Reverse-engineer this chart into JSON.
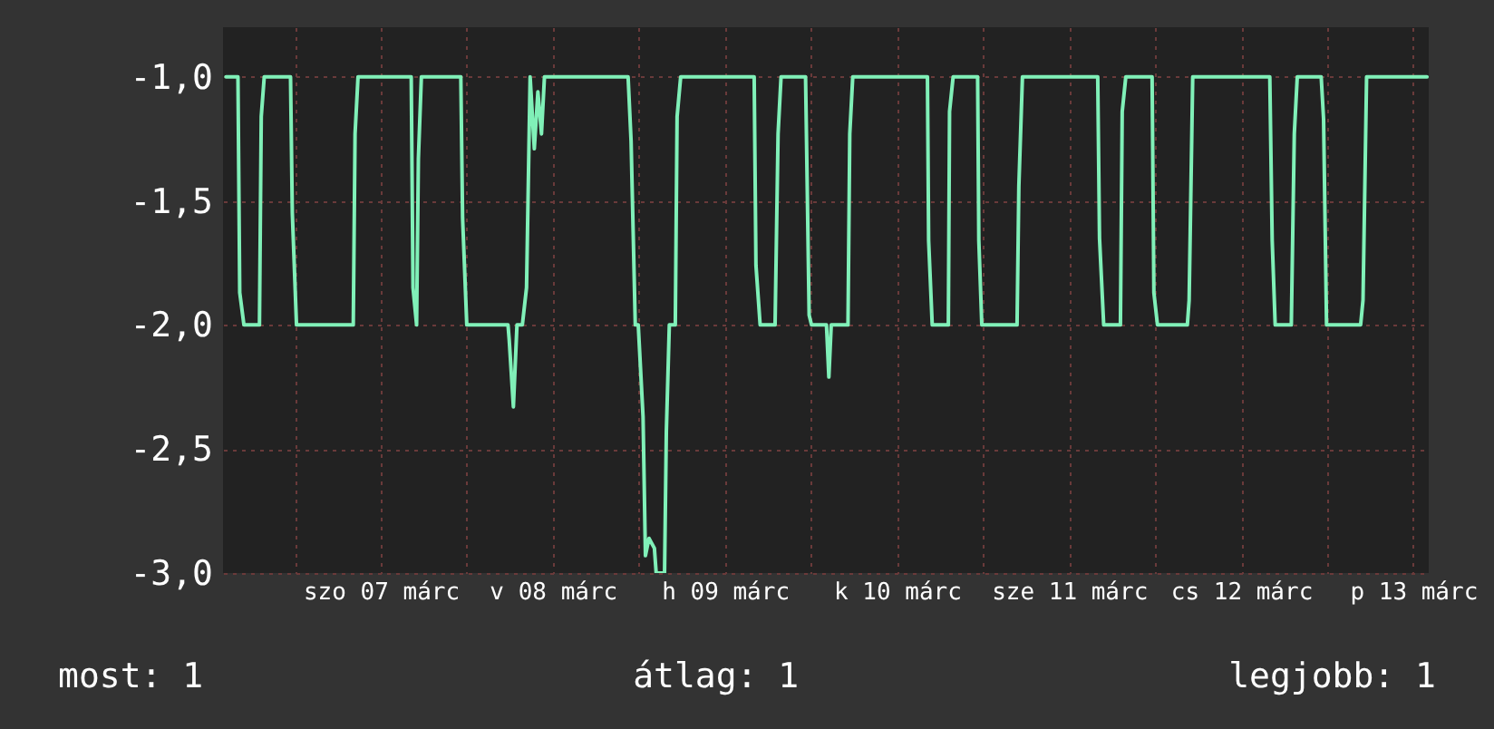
{
  "chart_data": {
    "type": "line",
    "x": [
      "--03-06T14:25",
      "--03-06T16:05",
      "--03-06T16:20",
      "--03-06T16:55",
      "--03-06T19:05",
      "--03-06T19:20",
      "--03-06T19:45",
      "--03-06T23:25",
      "--03-06T23:40",
      "--03-07T00:15",
      "--03-07T08:10",
      "--03-07T08:25",
      "--03-07T08:50",
      "--03-07T16:15",
      "--03-07T16:30",
      "--03-07T17:00",
      "--03-07T17:15",
      "--03-07T17:40",
      "--03-07T23:10",
      "--03-07T23:25",
      "--03-08T00:00",
      "--03-08T05:45",
      "--03-08T05:55",
      "--03-08T06:30",
      "--03-08T07:00",
      "--03-08T07:45",
      "--03-08T08:20",
      "--03-08T08:50",
      "--03-08T09:25",
      "--03-08T09:55",
      "--03-08T10:25",
      "--03-08T10:50",
      "--03-08T22:30",
      "--03-08T22:55",
      "--03-08T23:30",
      "--03-08T23:55",
      "--03-09T00:35",
      "--03-09T00:55",
      "--03-09T01:25",
      "--03-09T02:10",
      "--03-09T02:25",
      "--03-09T03:35",
      "--03-09T03:50",
      "--03-09T04:15",
      "--03-09T05:05",
      "--03-09T05:20",
      "--03-09T05:50",
      "--03-09T16:05",
      "--03-09T16:20",
      "--03-09T16:55",
      "--03-09T19:00",
      "--03-09T19:25",
      "--03-09T19:50",
      "--03-09T23:15",
      "--03-09T23:45",
      "--03-10T00:05",
      "--03-10T02:10",
      "--03-10T02:30",
      "--03-10T02:50",
      "--03-10T05:10",
      "--03-10T05:25",
      "--03-10T05:50",
      "--03-10T16:15",
      "--03-10T16:25",
      "--03-10T16:55",
      "--03-10T19:10",
      "--03-10T19:20",
      "--03-10T19:50",
      "--03-10T23:15",
      "--03-10T23:25",
      "--03-10T23:50",
      "--03-11T04:45",
      "--03-11T05:00",
      "--03-11T05:30",
      "--03-11T16:00",
      "--03-11T16:15",
      "--03-11T16:50",
      "--03-11T19:10",
      "--03-11T19:25",
      "--03-11T19:55",
      "--03-11T23:35",
      "--03-11T23:50",
      "--03-12T00:20",
      "--03-12T04:30",
      "--03-12T04:45",
      "--03-12T05:15",
      "--03-12T16:00",
      "--03-12T16:20",
      "--03-12T16:45",
      "--03-12T19:00",
      "--03-12T19:25",
      "--03-12T19:50",
      "--03-12T23:10",
      "--03-12T23:30",
      "--03-12T23:55",
      "--03-13T04:40",
      "--03-13T05:00",
      "--03-13T05:30",
      "--03-13T13:55"
    ],
    "series": [
      {
        "color": "#80f0b8",
        "values": [
          -1.0,
          -1.0,
          -1.87,
          -2.0,
          -2.0,
          -1.16,
          -1.0,
          -1.0,
          -1.55,
          -2.0,
          -2.0,
          -1.23,
          -1.0,
          -1.0,
          -1.85,
          -2.0,
          -1.33,
          -1.0,
          -1.0,
          -1.57,
          -2.0,
          -2.0,
          -2.06,
          -2.33,
          -2.0,
          -2.0,
          -1.85,
          -1.0,
          -1.29,
          -1.06,
          -1.23,
          -1.0,
          -1.0,
          -1.26,
          -2.0,
          -2.0,
          -2.37,
          -2.93,
          -2.86,
          -2.9,
          -3.0,
          -3.0,
          -2.43,
          -2.0,
          -2.0,
          -1.16,
          -1.0,
          -1.0,
          -1.76,
          -2.0,
          -2.0,
          -1.23,
          -1.0,
          -1.0,
          -1.96,
          -2.0,
          -2.0,
          -2.21,
          -2.0,
          -2.0,
          -1.23,
          -1.0,
          -1.0,
          -1.66,
          -2.0,
          -2.0,
          -1.14,
          -1.0,
          -1.0,
          -1.66,
          -2.0,
          -2.0,
          -1.44,
          -1.0,
          -1.0,
          -1.65,
          -2.0,
          -2.0,
          -1.14,
          -1.0,
          -1.0,
          -1.87,
          -2.0,
          -2.0,
          -1.9,
          -1.0,
          -1.0,
          -1.66,
          -2.0,
          -2.0,
          -1.23,
          -1.0,
          -1.0,
          -1.17,
          -2.0,
          -2.0,
          -1.9,
          -1.0,
          -1.0
        ]
      }
    ],
    "xlim": [
      "--03-06T14:00",
      "--03-13T14:10"
    ],
    "xticks": [
      {
        "value": "--03-07T00:00",
        "label": null
      },
      {
        "value": "--03-07T12:00",
        "label": "szo 07 márc"
      },
      {
        "value": "--03-08T00:00",
        "label": null
      },
      {
        "value": "--03-08T12:00",
        "label": "v 08 márc"
      },
      {
        "value": "--03-09T00:00",
        "label": null
      },
      {
        "value": "--03-09T12:00",
        "label": "h 09 márc"
      },
      {
        "value": "--03-10T00:00",
        "label": null
      },
      {
        "value": "--03-10T12:00",
        "label": "k 10 márc"
      },
      {
        "value": "--03-11T00:00",
        "label": null
      },
      {
        "value": "--03-11T12:00",
        "label": "sze 11 márc"
      },
      {
        "value": "--03-12T00:00",
        "label": null
      },
      {
        "value": "--03-12T12:00",
        "label": "cs 12 márc"
      },
      {
        "value": "--03-13T00:00",
        "label": null
      },
      {
        "value": "--03-13T12:00",
        "label": "p 13 márc"
      }
    ],
    "ylim": [
      -3.0,
      -0.8
    ],
    "yticks": [
      {
        "value": -3.0,
        "label": "-3,0"
      },
      {
        "value": -2.5,
        "label": "-2,5"
      },
      {
        "value": -2.0,
        "label": "-2,0"
      },
      {
        "value": -1.5,
        "label": "-1,5"
      },
      {
        "value": -1.0,
        "label": "-1,0"
      }
    ],
    "grid": true,
    "marker": "none",
    "line_style": "solid",
    "annotations": [
      "most: 1",
      "átlag: 1",
      "legjobb: 1"
    ]
  }
}
